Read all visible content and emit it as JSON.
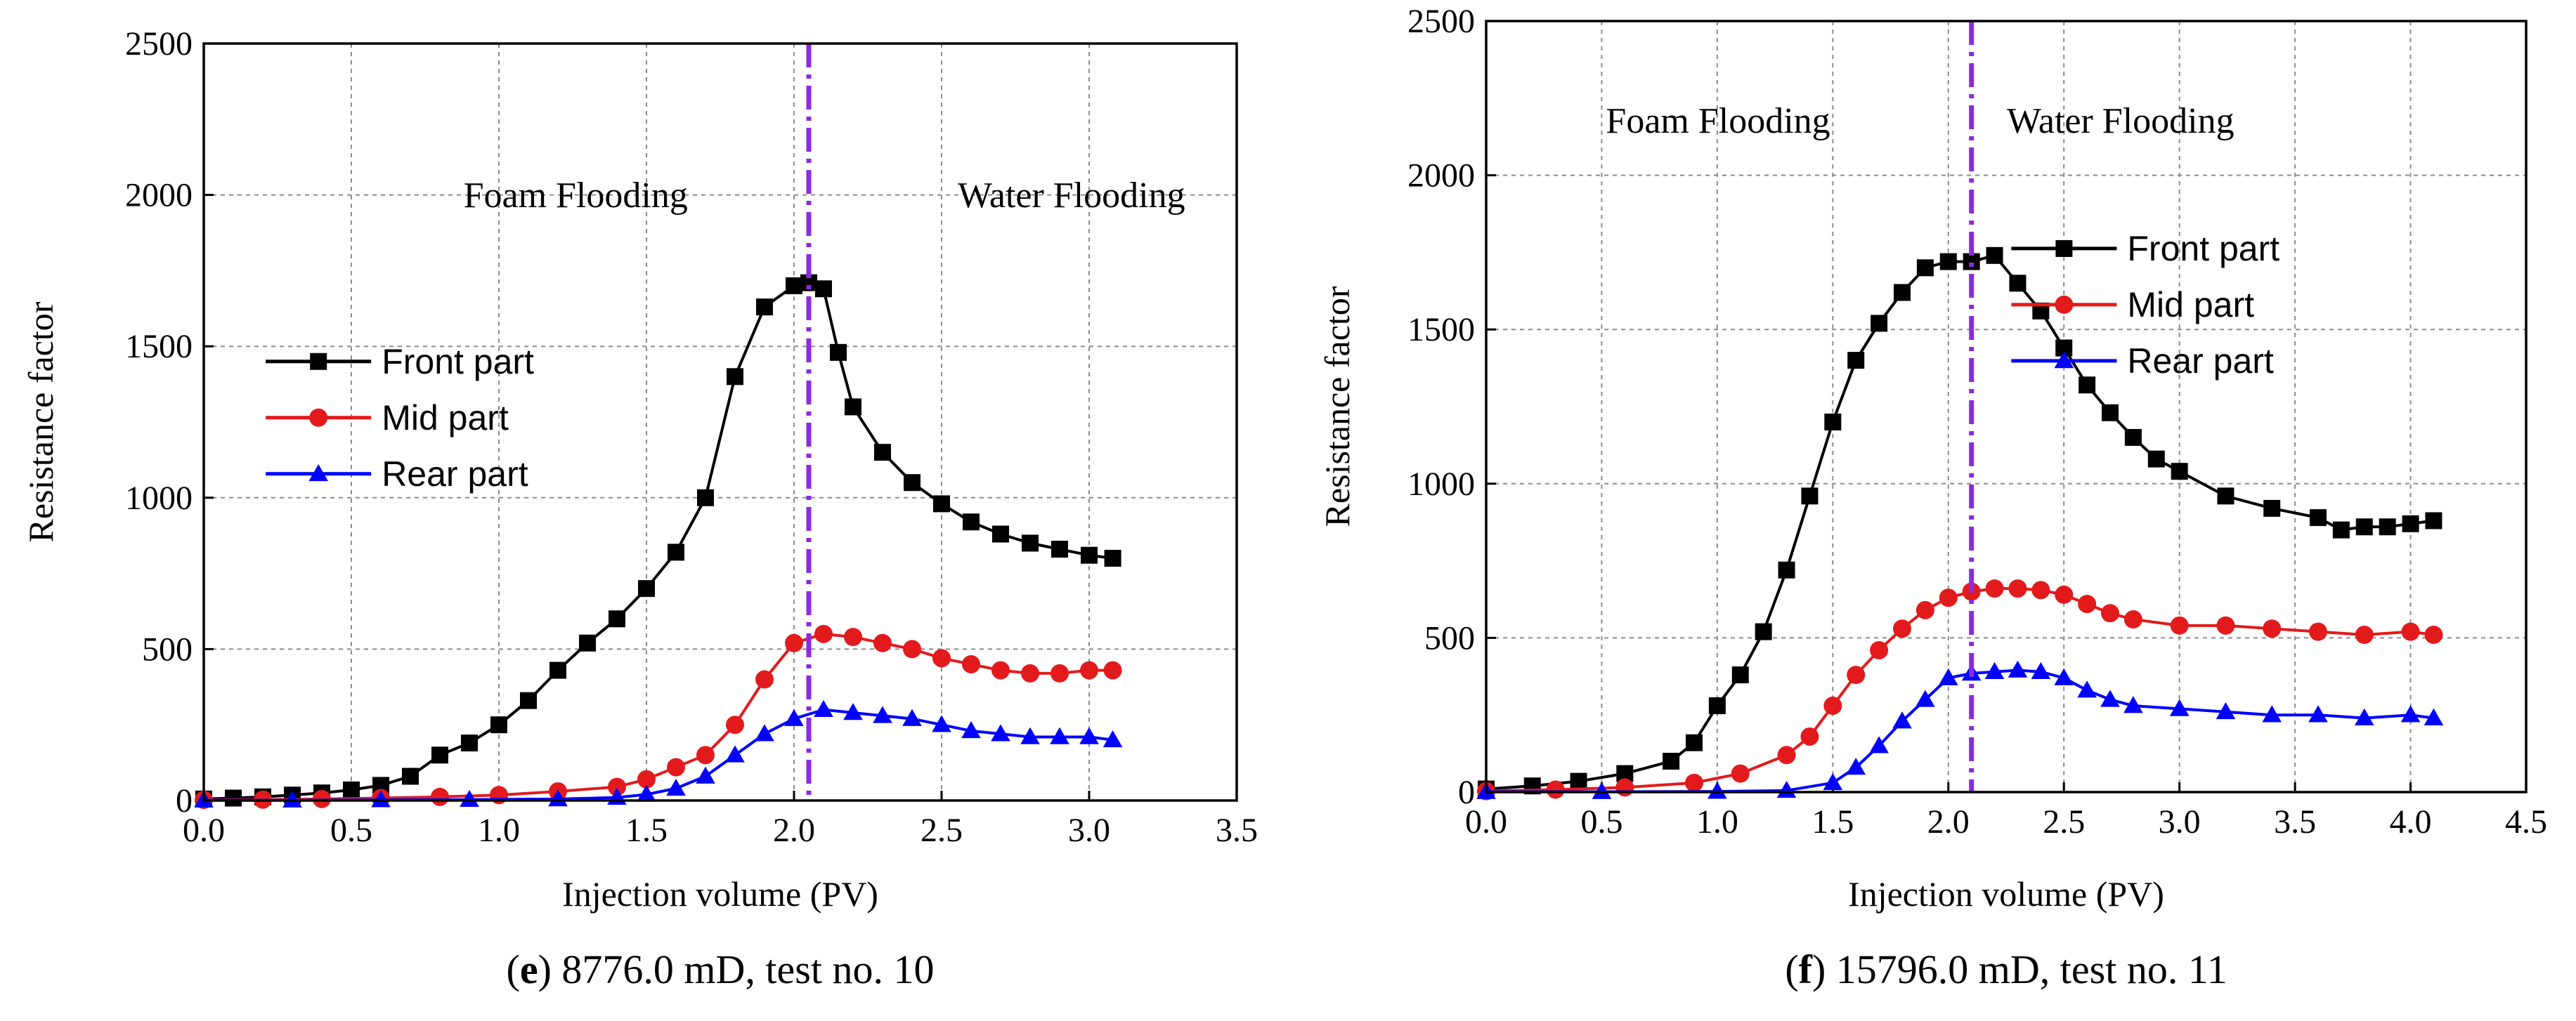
{
  "chart_data": [
    {
      "type": "line",
      "panel": "e",
      "caption_letter": "e",
      "caption_paren_open": "(",
      "caption_paren_close": ")",
      "caption_text": " 8776.0 mD, test no. 10",
      "xlabel": "Injection volume (PV)",
      "ylabel": "Resistance factor",
      "xlim": [
        0,
        3.5
      ],
      "ylim": [
        0,
        2500
      ],
      "xticks": [
        "0.0",
        "0.5",
        "1.0",
        "1.5",
        "2.0",
        "2.5",
        "3.0",
        "3.5"
      ],
      "yticks": [
        "0",
        "500",
        "1000",
        "1500",
        "2000",
        "2500"
      ],
      "grid": true,
      "divider_x": 2.05,
      "annotations": [
        "Foam Flooding",
        "Water Flooding"
      ],
      "legend_position": "center-left",
      "series": [
        {
          "name": "Front part",
          "color": "#000000",
          "marker": "square",
          "x": [
            0.0,
            0.1,
            0.2,
            0.3,
            0.4,
            0.5,
            0.6,
            0.7,
            0.8,
            0.9,
            1.0,
            1.1,
            1.2,
            1.3,
            1.4,
            1.5,
            1.6,
            1.7,
            1.8,
            1.9,
            2.0,
            2.05,
            2.1,
            2.15,
            2.2,
            2.3,
            2.4,
            2.5,
            2.6,
            2.7,
            2.8,
            2.9,
            3.0,
            3.08
          ],
          "y": [
            5,
            8,
            12,
            18,
            25,
            35,
            50,
            80,
            150,
            190,
            250,
            330,
            430,
            520,
            600,
            700,
            820,
            1000,
            1400,
            1630,
            1700,
            1710,
            1690,
            1480,
            1300,
            1150,
            1050,
            980,
            920,
            880,
            850,
            830,
            810,
            800
          ]
        },
        {
          "name": "Mid part",
          "color": "#e31a1c",
          "marker": "circle",
          "x": [
            0.0,
            0.2,
            0.4,
            0.6,
            0.8,
            1.0,
            1.2,
            1.4,
            1.5,
            1.6,
            1.7,
            1.8,
            1.9,
            2.0,
            2.1,
            2.2,
            2.3,
            2.4,
            2.5,
            2.6,
            2.7,
            2.8,
            2.9,
            3.0,
            3.08
          ],
          "y": [
            2,
            3,
            5,
            8,
            12,
            18,
            30,
            45,
            70,
            110,
            150,
            250,
            400,
            520,
            550,
            540,
            520,
            500,
            470,
            450,
            430,
            420,
            420,
            430,
            430
          ]
        },
        {
          "name": "Rear part",
          "color": "#0000ff",
          "marker": "triangle",
          "x": [
            0.0,
            0.3,
            0.6,
            0.9,
            1.2,
            1.4,
            1.5,
            1.6,
            1.7,
            1.8,
            1.9,
            2.0,
            2.1,
            2.2,
            2.3,
            2.4,
            2.5,
            2.6,
            2.7,
            2.8,
            2.9,
            3.0,
            3.08
          ],
          "y": [
            1,
            1,
            2,
            3,
            5,
            10,
            20,
            40,
            80,
            150,
            220,
            270,
            300,
            290,
            280,
            270,
            250,
            230,
            220,
            210,
            210,
            210,
            200
          ]
        }
      ]
    },
    {
      "type": "line",
      "panel": "f",
      "caption_letter": "f",
      "caption_paren_open": "(",
      "caption_paren_close": ")",
      "caption_text": " 15796.0 mD, test no. 11",
      "xlabel": "Injection volume (PV)",
      "ylabel": "Resistance factor",
      "xlim": [
        0,
        4.5
      ],
      "ylim": [
        0,
        2500
      ],
      "xticks": [
        "0.0",
        "0.5",
        "1.0",
        "1.5",
        "2.0",
        "2.5",
        "3.0",
        "3.5",
        "4.0",
        "4.5"
      ],
      "yticks": [
        "0",
        "500",
        "1000",
        "1500",
        "2000",
        "2500"
      ],
      "grid": true,
      "divider_x": 2.1,
      "annotations": [
        "Foam Flooding",
        "Water Flooding"
      ],
      "legend_position": "top-right",
      "series": [
        {
          "name": "Front part",
          "color": "#000000",
          "marker": "square",
          "x": [
            0.0,
            0.2,
            0.4,
            0.6,
            0.8,
            0.9,
            1.0,
            1.1,
            1.2,
            1.3,
            1.4,
            1.5,
            1.6,
            1.7,
            1.8,
            1.9,
            2.0,
            2.1,
            2.2,
            2.3,
            2.4,
            2.5,
            2.6,
            2.7,
            2.8,
            2.9,
            3.0,
            3.2,
            3.4,
            3.6,
            3.7,
            3.8,
            3.9,
            4.0,
            4.1
          ],
          "y": [
            10,
            20,
            35,
            60,
            100,
            160,
            280,
            380,
            520,
            720,
            960,
            1200,
            1400,
            1520,
            1620,
            1700,
            1720,
            1720,
            1740,
            1650,
            1560,
            1440,
            1320,
            1230,
            1150,
            1080,
            1040,
            960,
            920,
            890,
            850,
            860,
            860,
            870,
            880
          ]
        },
        {
          "name": "Mid part",
          "color": "#e31a1c",
          "marker": "circle",
          "x": [
            0.0,
            0.3,
            0.6,
            0.9,
            1.1,
            1.3,
            1.4,
            1.5,
            1.6,
            1.7,
            1.8,
            1.9,
            2.0,
            2.1,
            2.2,
            2.3,
            2.4,
            2.5,
            2.6,
            2.7,
            2.8,
            3.0,
            3.2,
            3.4,
            3.6,
            3.8,
            4.0,
            4.1
          ],
          "y": [
            3,
            8,
            15,
            30,
            60,
            120,
            180,
            280,
            380,
            460,
            530,
            590,
            630,
            650,
            660,
            660,
            655,
            640,
            610,
            580,
            560,
            540,
            540,
            530,
            520,
            510,
            520,
            510
          ]
        },
        {
          "name": "Rear part",
          "color": "#0000ff",
          "marker": "triangle",
          "x": [
            0.0,
            0.5,
            1.0,
            1.3,
            1.5,
            1.6,
            1.7,
            1.8,
            1.9,
            2.0,
            2.1,
            2.2,
            2.3,
            2.4,
            2.5,
            2.6,
            2.7,
            2.8,
            3.0,
            3.2,
            3.4,
            3.6,
            3.8,
            4.0,
            4.1
          ],
          "y": [
            1,
            1,
            2,
            5,
            30,
            80,
            150,
            230,
            300,
            370,
            385,
            390,
            395,
            390,
            370,
            330,
            300,
            280,
            270,
            260,
            250,
            250,
            240,
            250,
            240
          ]
        }
      ]
    }
  ]
}
